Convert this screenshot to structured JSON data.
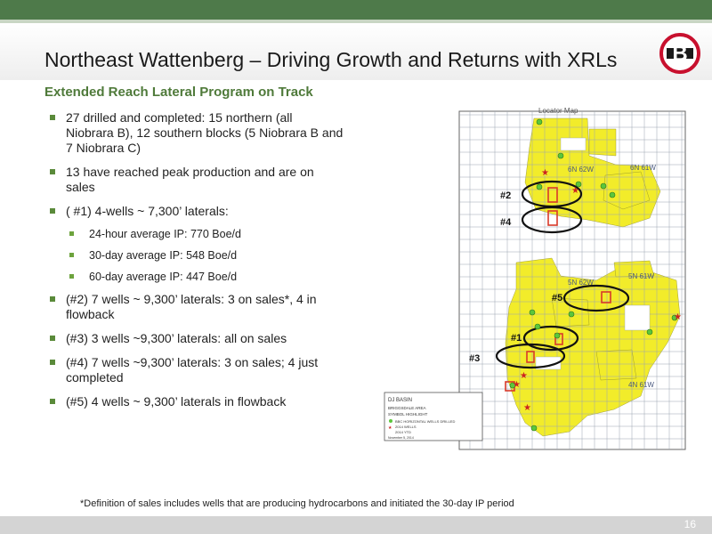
{
  "header": {
    "title": "Northeast Wattenberg – Driving Growth and Returns with XRLs",
    "logo_letter": "B"
  },
  "subtitle": "Extended Reach Lateral Program on Track",
  "bullets": [
    "27 drilled and completed: 15 northern (all Niobrara B), 12 southern blocks (5 Niobrara B and 7 Niobrara C)",
    "13 have reached peak production and are on sales",
    "( #1) 4-wells ~ 7,300’ laterals:",
    "(#2) 7 wells ~ 9,300’ laterals: 3 on sales*, 4 in flowback",
    "(#3) 3 wells ~9,300’ laterals: all on sales",
    "(#4) 7 wells ~9,300’ laterals: 3 on sales; 4 just completed",
    "(#5) 4 wells ~ 9,300’ laterals in flowback"
  ],
  "sub_bullets": [
    "24-hour average IP: 770 Boe/d",
    "30-day average IP: 548 Boe/d",
    "60-day average IP: 447 Boe/d"
  ],
  "map": {
    "title": "Locator Map",
    "township_labels": [
      "6N 62W",
      "6N 61W",
      "5N 62W",
      "5N 61W",
      "4N 61W"
    ],
    "callouts": [
      "#1",
      "#2",
      "#3",
      "#4",
      "#5"
    ],
    "legend_title": "DJ BASIN",
    "legend_area": "BRIGGSDALE AREA",
    "legend_symbol": "SYMBOL HIGHLIGHT",
    "legend_items": [
      "BBC HORIZONTAL WELLS DRILLED",
      "2014 WELLS",
      "2014 YTD"
    ],
    "legend_date": "November 5, 2014",
    "colors": {
      "acreage": "#f2ec2a",
      "grid": "#9aa3b0",
      "well": "#5cc63c",
      "star": "#cc2222"
    }
  },
  "footnote": "*Definition of sales includes wells that are producing hydrocarbons and initiated the 30-day IP period",
  "page_number": "16"
}
